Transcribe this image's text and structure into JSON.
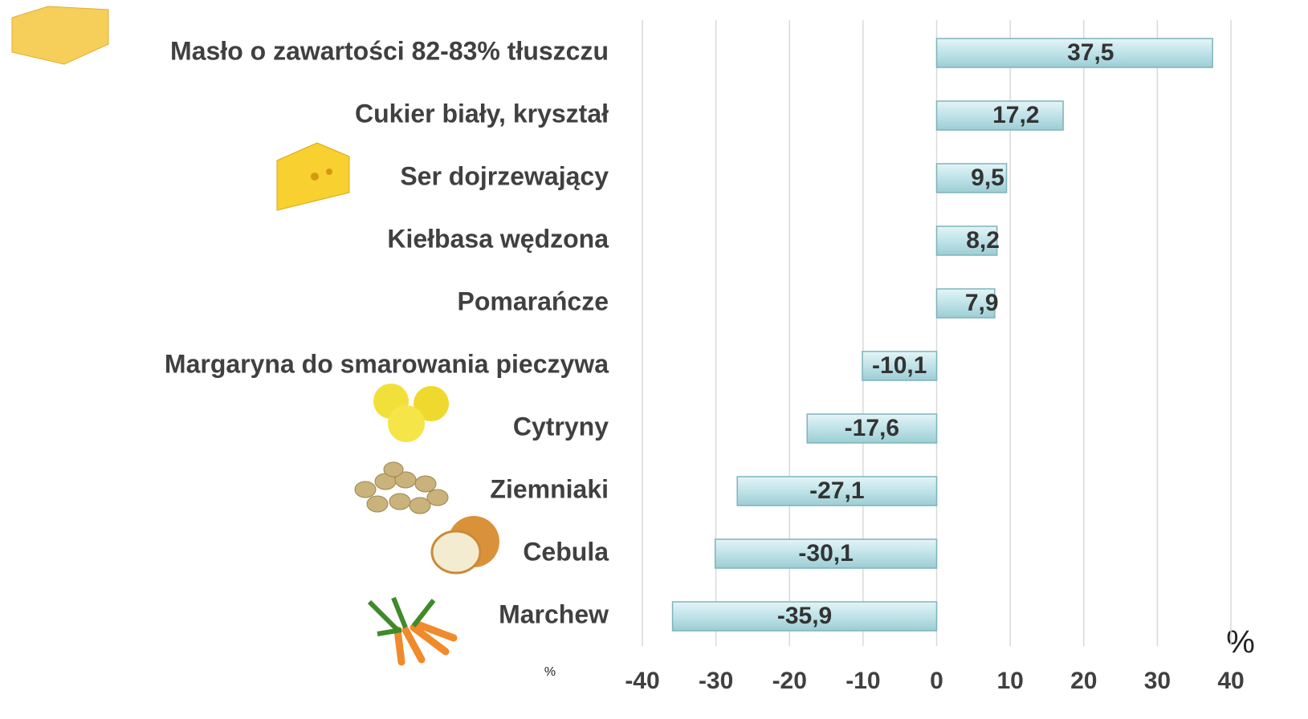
{
  "chart_data": {
    "type": "bar",
    "orientation": "horizontal",
    "categories": [
      "Masło o zawartości 82-83% tłuszczu",
      "Cukier biały, kryształ",
      "Ser dojrzewający",
      "Kiełbasa wędzona",
      "Pomarańcze",
      "Margaryna do smarowania pieczywa",
      "Cytryny",
      "Ziemniaki",
      "Cebula",
      "Marchew"
    ],
    "values": [
      37.5,
      17.2,
      9.5,
      8.2,
      7.9,
      -10.1,
      -17.6,
      -27.1,
      -30.1,
      -35.9
    ],
    "value_labels": [
      "37,5",
      "17,2",
      "9,5",
      "8,2",
      "7,9",
      "-10,1",
      "-17,6",
      "-27,1",
      "-30,1",
      "-35,9"
    ],
    "color": "#bfe3e8",
    "xlim": [
      -40,
      40
    ],
    "xticks": [
      -40,
      -30,
      -20,
      -10,
      0,
      10,
      20,
      30,
      40
    ],
    "grid": true,
    "annotations": [
      "%",
      "%"
    ]
  }
}
